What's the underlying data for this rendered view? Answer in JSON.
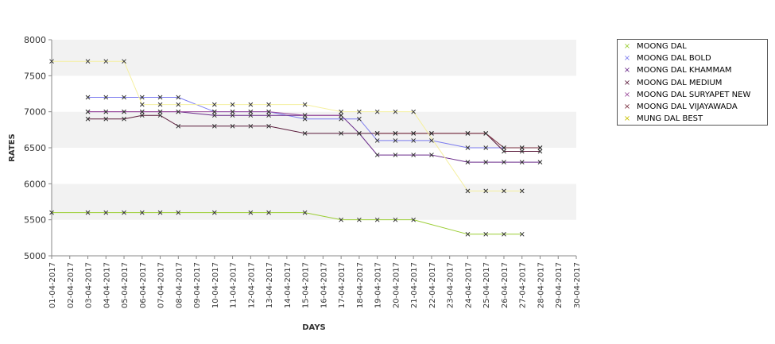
{
  "chart_data": {
    "type": "line",
    "xlabel": "DAYS",
    "ylabel": "RATES",
    "ylim": [
      5000,
      8000
    ],
    "yticks": [
      5000,
      5500,
      6000,
      6500,
      7000,
      7500,
      8000
    ],
    "grid": "alternating horizontal bands",
    "legend": "top-right",
    "categories": [
      "01-04-2017",
      "02-04-2017",
      "03-04-2017",
      "04-04-2017",
      "05-04-2017",
      "06-04-2017",
      "07-04-2017",
      "08-04-2017",
      "09-04-2017",
      "10-04-2017",
      "11-04-2017",
      "12-04-2017",
      "13-04-2017",
      "14-04-2017",
      "15-04-2017",
      "16-04-2017",
      "17-04-2017",
      "18-04-2017",
      "19-04-2017",
      "20-04-2017",
      "21-04-2017",
      "22-04-2017",
      "23-04-2017",
      "24-04-2017",
      "25-04-2017",
      "26-04-2017",
      "27-04-2017",
      "28-04-2017",
      "29-04-2017",
      "30-04-2017"
    ],
    "series": [
      {
        "name": "MOONG DAL",
        "color": "#9acd32",
        "values": [
          5600,
          null,
          5600,
          5600,
          5600,
          5600,
          5600,
          5600,
          null,
          5600,
          null,
          5600,
          5600,
          null,
          5600,
          null,
          5500,
          5500,
          5500,
          5500,
          5500,
          null,
          null,
          5300,
          5300,
          5300,
          5300,
          null,
          null,
          null
        ]
      },
      {
        "name": "MOONG DAL BOLD",
        "color": "#7b7bef",
        "values": [
          null,
          null,
          7200,
          7200,
          7200,
          7200,
          7200,
          7200,
          null,
          7000,
          7000,
          7000,
          7000,
          null,
          6900,
          null,
          6900,
          6900,
          6600,
          6600,
          6600,
          6600,
          null,
          6500,
          6500,
          6500,
          6500,
          6500,
          null,
          null
        ]
      },
      {
        "name": "MOONG DAL KHAMMAM",
        "color": "#6a2a8a",
        "values": [
          null,
          null,
          7000,
          7000,
          7000,
          7000,
          7000,
          7000,
          null,
          6950,
          6950,
          6950,
          6950,
          null,
          6950,
          null,
          6950,
          6700,
          6400,
          6400,
          6400,
          6400,
          null,
          6300,
          6300,
          6300,
          6300,
          6300,
          null,
          null
        ]
      },
      {
        "name": "MOONG DAL MEDIUM",
        "color": "#5a1a3a",
        "values": [
          null,
          null,
          6900,
          6900,
          6900,
          6950,
          6950,
          6800,
          null,
          6800,
          6800,
          6800,
          6800,
          null,
          6700,
          null,
          6700,
          6700,
          6700,
          6700,
          6700,
          6700,
          null,
          6700,
          6700,
          6450,
          6450,
          6450,
          null,
          null
        ]
      },
      {
        "name": "MOONG DAL SURYAPET NEW",
        "color": "#9b4a9b",
        "values": [
          null,
          null,
          7000,
          7000,
          7000,
          7000,
          7000,
          7000,
          null,
          7000,
          7000,
          7000,
          7000,
          null,
          6950,
          null,
          6950,
          null,
          null,
          null,
          null,
          null,
          null,
          null,
          null,
          null,
          null,
          null,
          null,
          null
        ]
      },
      {
        "name": "MOONG DAL VIJAYAWADA",
        "color": "#7a3040",
        "values": [
          null,
          null,
          null,
          null,
          null,
          null,
          null,
          null,
          null,
          null,
          null,
          null,
          null,
          null,
          null,
          null,
          null,
          null,
          6700,
          6700,
          6700,
          6700,
          null,
          6700,
          6700,
          6500,
          6500,
          6500,
          null,
          null
        ]
      },
      {
        "name": "MUNG DAL BEST",
        "color": "#f5f0a0",
        "values": [
          7700,
          null,
          7700,
          7700,
          7700,
          7100,
          7100,
          7100,
          null,
          7100,
          7100,
          7100,
          7100,
          null,
          7100,
          null,
          7000,
          7000,
          7000,
          7000,
          7000,
          null,
          null,
          5900,
          5900,
          5900,
          5900,
          null,
          null,
          null
        ]
      }
    ]
  }
}
